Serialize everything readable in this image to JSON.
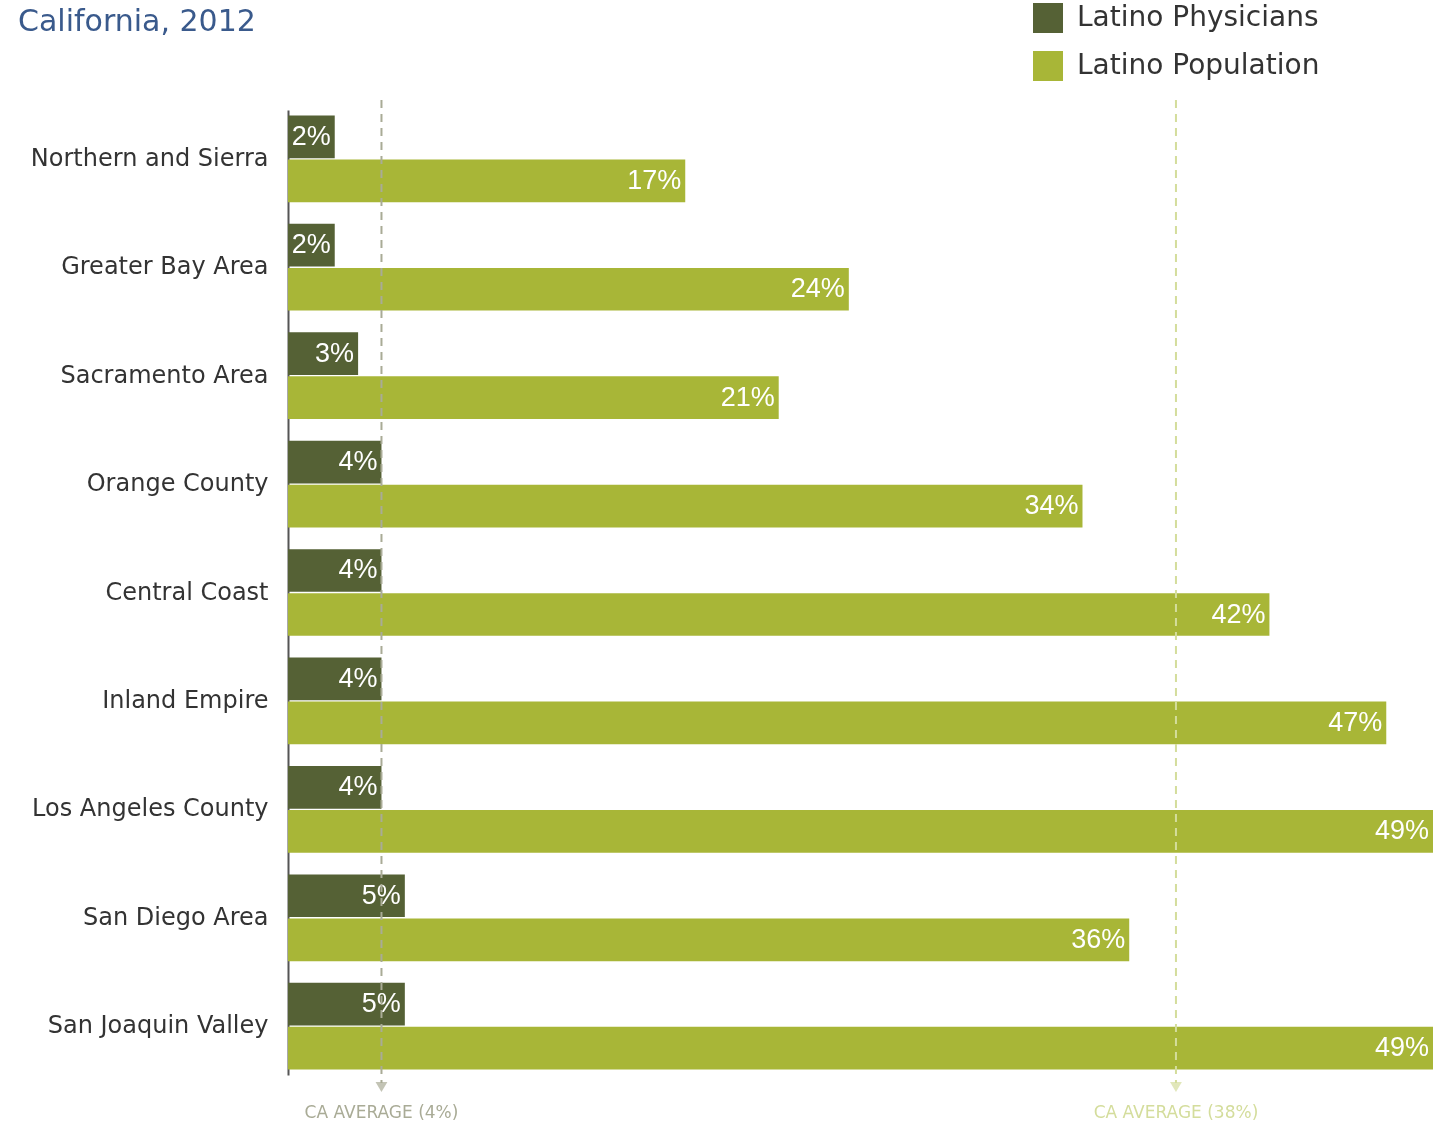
{
  "chart_data": {
    "type": "bar",
    "orientation": "horizontal",
    "title": "California, 2012",
    "categories": [
      "Northern and Sierra",
      "Greater Bay Area",
      "Sacramento Area",
      "Orange County",
      "Central Coast",
      "Inland Empire",
      "Los Angeles County",
      "San Diego Area",
      "San Joaquin Valley"
    ],
    "series": [
      {
        "name": "Latino Physicians",
        "color": "#556135",
        "values": [
          2,
          2,
          3,
          4,
          4,
          4,
          4,
          5,
          5
        ],
        "value_labels": [
          "2%",
          "2%",
          "3%",
          "4%",
          "4%",
          "4%",
          "4%",
          "5%",
          "5%"
        ]
      },
      {
        "name": "Latino Population",
        "color": "#a8b637",
        "values": [
          17,
          24,
          21,
          34,
          42,
          47,
          49,
          36,
          49
        ],
        "value_labels": [
          "17%",
          "24%",
          "21%",
          "34%",
          "42%",
          "47%",
          "49%",
          "36%",
          "49%"
        ]
      }
    ],
    "ref_lines": [
      {
        "axis": "x",
        "value": 4,
        "label": "CA AVERAGE (4%)",
        "color": "#a9ab96",
        "line_style": "dashed"
      },
      {
        "axis": "x",
        "value": 38,
        "label": "CA AVERAGE (38%)",
        "color": "#d4dd9c",
        "line_style": "dashed"
      }
    ],
    "legend": "top right"
  }
}
